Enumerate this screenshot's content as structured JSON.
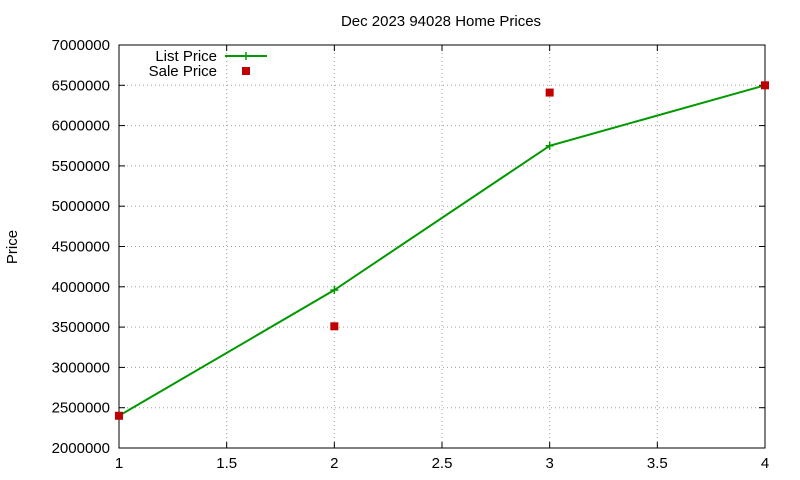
{
  "chart_data": {
    "type": "line",
    "title": "Dec 2023 94028 Home Prices",
    "xlabel": "",
    "ylabel": "Price",
    "xlim": [
      1,
      4
    ],
    "ylim": [
      2000000,
      7000000
    ],
    "x_ticks": [
      "1",
      "1.5",
      "2",
      "2.5",
      "3",
      "3.5",
      "4"
    ],
    "y_ticks": [
      "2000000",
      "2500000",
      "3000000",
      "3500000",
      "4000000",
      "4500000",
      "5000000",
      "5500000",
      "6000000",
      "6500000",
      "7000000"
    ],
    "grid": true,
    "legend_position": "top-left",
    "series": [
      {
        "name": "List Price",
        "style": "line-with-plus-markers",
        "color": "#009900",
        "points": [
          {
            "x": 1,
            "y": 2400000
          },
          {
            "x": 2,
            "y": 3960000
          },
          {
            "x": 3,
            "y": 5750000
          },
          {
            "x": 4,
            "y": 6500000
          }
        ]
      },
      {
        "name": "Sale Price",
        "style": "square-markers",
        "color": "#c00000",
        "points": [
          {
            "x": 1,
            "y": 2400000
          },
          {
            "x": 2,
            "y": 3510000
          },
          {
            "x": 3,
            "y": 6410000
          },
          {
            "x": 4,
            "y": 6500000
          }
        ]
      }
    ]
  }
}
